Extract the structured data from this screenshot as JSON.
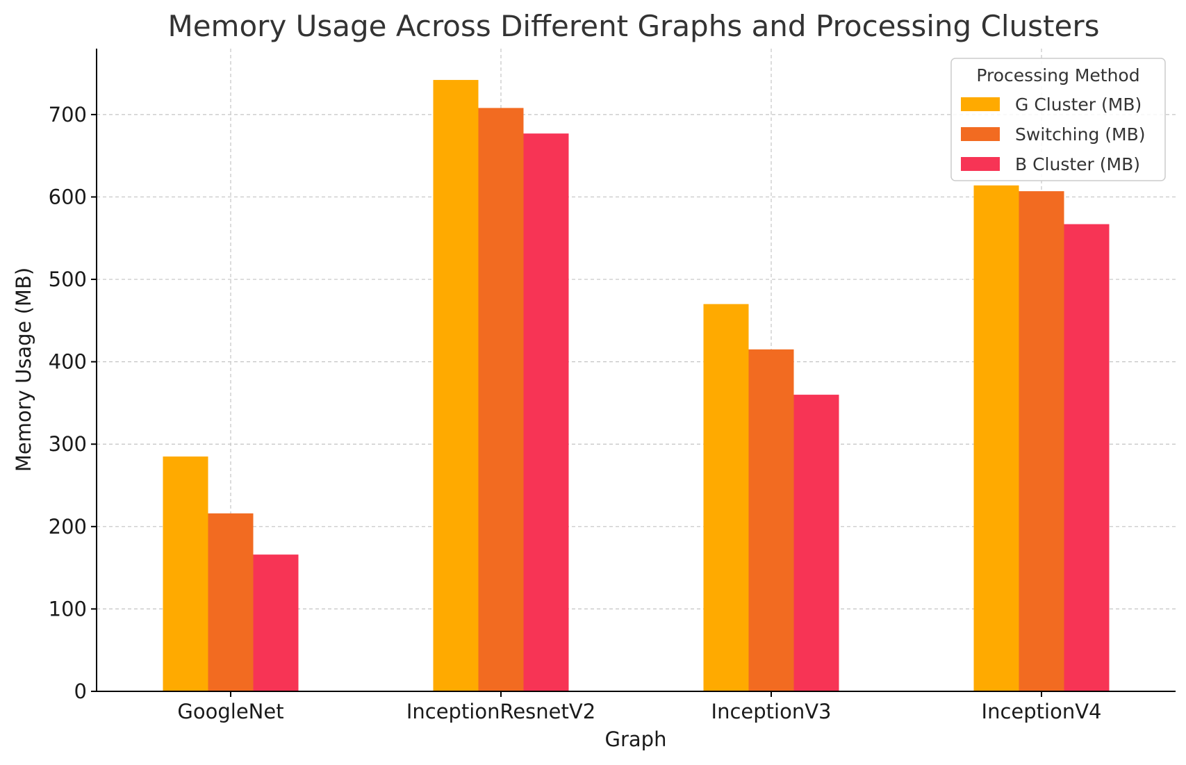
{
  "chart_data": {
    "type": "bar",
    "title": "Memory Usage Across Different Graphs and Processing Clusters",
    "xlabel": "Graph",
    "ylabel": "Memory Usage (MB)",
    "categories": [
      "GoogleNet",
      "InceptionResnetV2",
      "InceptionV3",
      "InceptionV4"
    ],
    "series": [
      {
        "name": "G Cluster (MB)",
        "color": "#FFAA00",
        "values": [
          285,
          742,
          470,
          614
        ]
      },
      {
        "name": "Switching (MB)",
        "color": "#F26B21",
        "values": [
          216,
          708,
          415,
          607
        ]
      },
      {
        "name": "B Cluster (MB)",
        "color": "#F73455",
        "values": [
          166,
          677,
          360,
          567
        ]
      }
    ],
    "ylim": [
      0,
      780
    ],
    "yticks": [
      0,
      100,
      200,
      300,
      400,
      500,
      600,
      700
    ],
    "grid": true,
    "legend": {
      "title": "Processing Method",
      "placement": "top-right"
    }
  }
}
